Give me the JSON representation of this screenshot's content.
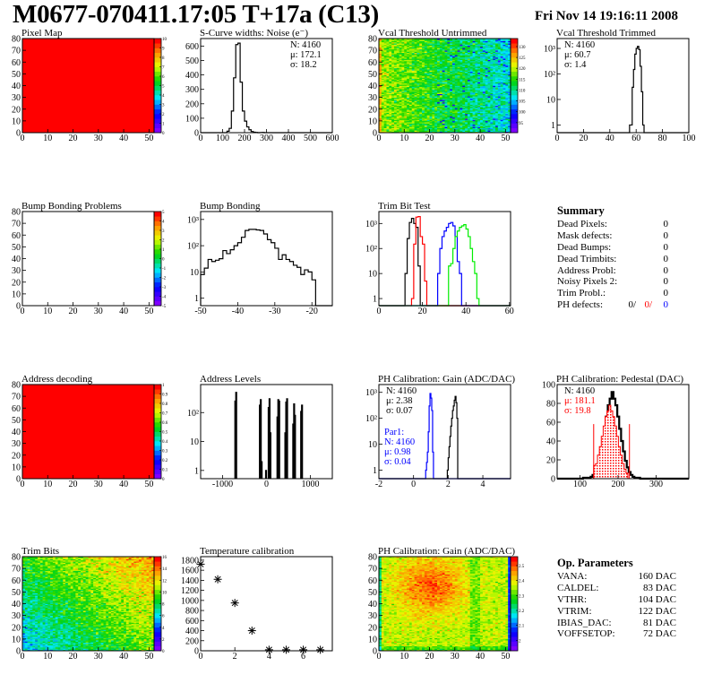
{
  "header": {
    "title": "M0677-070411.17:05 T+17a (C13)",
    "date": "Fri Nov 14 19:16:11 2008"
  },
  "summary": {
    "title": "Summary",
    "rows": [
      {
        "label": "Dead Pixels:",
        "value": "0"
      },
      {
        "label": "Mask defects:",
        "value": "0"
      },
      {
        "label": "Dead Bumps:",
        "value": "0"
      },
      {
        "label": "Dead Trimbits:",
        "value": "0"
      },
      {
        "label": "Address Probl:",
        "value": "0"
      },
      {
        "label": "Noisy Pixels 2:",
        "value": "0"
      },
      {
        "label": "Trim Probl.:",
        "value": "0"
      }
    ],
    "ph_defects": {
      "label": "PH defects:",
      "v1": "0/",
      "v2": "0/",
      "v3": "0",
      "colors": [
        "#000000",
        "#ff0000",
        "#0000ff"
      ]
    }
  },
  "op_parameters": {
    "title": "Op. Parameters",
    "rows": [
      {
        "label": "VANA:",
        "value": "160 DAC"
      },
      {
        "label": "CALDEL:",
        "value": "83 DAC"
      },
      {
        "label": "VTHR:",
        "value": "104 DAC"
      },
      {
        "label": "VTRIM:",
        "value": "122 DAC"
      },
      {
        "label": "IBIAS_DAC:",
        "value": "81 DAC"
      },
      {
        "label": "VOFFSETOP:",
        "value": "72 DAC"
      }
    ]
  },
  "chart_data": [
    {
      "type": "heatmap",
      "title": "Pixel Map",
      "xlim": [
        0,
        52
      ],
      "ylim": [
        0,
        80
      ],
      "zlim": [
        0,
        10
      ],
      "xticks": [
        0,
        10,
        20,
        30,
        40,
        50
      ],
      "yticks": [
        0,
        10,
        20,
        30,
        40,
        50,
        60,
        70,
        80
      ],
      "zticks": [
        0,
        1,
        2,
        3,
        4,
        5,
        6,
        7,
        8,
        9,
        10
      ],
      "uniform_value": 10
    },
    {
      "type": "hist",
      "title": "S-Curve widths: Noise (e⁻)",
      "log": false,
      "xlim": [
        0,
        600
      ],
      "ylim": [
        0,
        652
      ],
      "xticks": [
        0,
        100,
        200,
        300,
        400,
        500,
        600
      ],
      "yticks": [
        0,
        100,
        200,
        300,
        400,
        500,
        600
      ],
      "series": [
        {
          "color": "#000000",
          "x_low": 120,
          "bin_width": 10,
          "values": [
            10,
            30,
            150,
            380,
            610,
            620,
            350,
            150,
            80,
            40,
            20,
            8,
            3,
            2,
            0,
            1,
            2
          ]
        }
      ],
      "stats": [
        {
          "position": "top-right",
          "lines": [
            {
              "text": "N: 4160",
              "color": "#000000"
            },
            {
              "text": "μ: 172.1",
              "color": "#000000"
            },
            {
              "text": "σ: 18.2",
              "color": "#000000"
            }
          ]
        }
      ]
    },
    {
      "type": "heatmap",
      "title": "Vcal Threshold Untrimmed",
      "xlim": [
        0,
        52
      ],
      "ylim": [
        0,
        80
      ],
      "zlim": [
        90.4,
        133.7
      ],
      "xticks": [
        0,
        10,
        20,
        30,
        40,
        50
      ],
      "yticks": [
        0,
        10,
        20,
        30,
        40,
        50,
        60,
        70,
        80
      ],
      "zticks": [
        95,
        100,
        105,
        110,
        115,
        120,
        125,
        130
      ]
    },
    {
      "type": "hist",
      "title": "Vcal Threshold Trimmed",
      "log": true,
      "xlim": [
        0,
        100
      ],
      "ylim": [
        0.5,
        2440
      ],
      "xticks": [
        0,
        20,
        40,
        60,
        80,
        100
      ],
      "yticks": [
        1,
        10,
        100,
        1000
      ],
      "ytick_labels": [
        "1",
        "10",
        "10²",
        "10³"
      ],
      "series": [
        {
          "color": "#000000",
          "x_low": 55,
          "bin_width": 1,
          "values": [
            1,
            1,
            30,
            150,
            600,
            1000,
            1200,
            900,
            200,
            20,
            1
          ]
        }
      ],
      "stats": [
        {
          "position": "top-left",
          "lines": [
            {
              "text": "N: 4160",
              "color": "#000000"
            },
            {
              "text": "μ: 60.7",
              "color": "#000000"
            },
            {
              "text": "σ:  1.4",
              "color": "#000000"
            }
          ]
        }
      ]
    },
    {
      "type": "heatmap",
      "title": "Bump Bonding Problems",
      "xlim": [
        0,
        52
      ],
      "ylim": [
        0,
        80
      ],
      "zlim": [
        -5,
        5
      ],
      "xticks": [
        0,
        10,
        20,
        30,
        40,
        50
      ],
      "yticks": [
        0,
        10,
        20,
        30,
        40,
        50,
        60,
        70,
        80
      ],
      "zticks": [
        -5,
        -4,
        -3,
        -2,
        -1,
        0,
        1,
        2,
        3,
        4,
        5
      ],
      "uniform_value": null
    },
    {
      "type": "hist",
      "title": "Bump Bonding",
      "log": true,
      "xlim": [
        -50,
        -14.5
      ],
      "ylim": [
        0.52,
        2000
      ],
      "xticks": [
        -50,
        -40,
        -30,
        -20
      ],
      "yticks": [
        1,
        10,
        100,
        1000
      ],
      "ytick_labels": [
        "1",
        "10",
        "10²",
        "10³"
      ],
      "series": [
        {
          "color": "#000000",
          "x_low": -50,
          "bin_width": 1,
          "values": [
            8,
            14,
            30,
            25,
            28,
            32,
            65,
            50,
            70,
            100,
            130,
            210,
            380,
            420,
            420,
            400,
            380,
            280,
            170,
            130,
            80,
            30,
            45,
            30,
            25,
            18,
            15,
            8,
            12,
            10,
            5,
            0
          ]
        }
      ]
    },
    {
      "type": "hist",
      "title": "Trim Bit Test",
      "log": true,
      "xlim": [
        0,
        60.5
      ],
      "ylim": [
        0.52,
        3000
      ],
      "xticks": [
        0,
        20,
        40,
        60
      ],
      "yticks": [
        1,
        10,
        100,
        1000
      ],
      "ytick_labels": [
        "1",
        "10",
        "10²",
        "10³"
      ],
      "series": [
        {
          "color": "#000000",
          "x_low": 12,
          "bin_width": 1,
          "values": [
            10,
            250,
            1100,
            1600,
            1000,
            700,
            20,
            0
          ]
        },
        {
          "color": "#ff0000",
          "x_low": 15,
          "bin_width": 1,
          "values": [
            1,
            150,
            1800,
            1900,
            300,
            150,
            5,
            0
          ]
        },
        {
          "color": "#0000ff",
          "x_low": 27,
          "bin_width": 1,
          "values": [
            10,
            100,
            300,
            500,
            700,
            1000,
            1100,
            800,
            300,
            30,
            10,
            0
          ]
        },
        {
          "color": "#00ee00",
          "x_low": 32,
          "bin_width": 1,
          "values": [
            20,
            25,
            100,
            300,
            500,
            700,
            800,
            900,
            600,
            300,
            100,
            30,
            10,
            1,
            0
          ]
        }
      ]
    },
    {
      "type": "heatmap",
      "title": "Address decoding",
      "xlim": [
        0,
        52
      ],
      "ylim": [
        0,
        80
      ],
      "zlim": [
        0,
        1
      ],
      "xticks": [
        0,
        10,
        20,
        30,
        40,
        50
      ],
      "yticks": [
        0,
        10,
        20,
        30,
        40,
        50,
        60,
        70,
        80
      ],
      "zticks": [
        0,
        0.1,
        0.2,
        0.3,
        0.4,
        0.5,
        0.6,
        0.7,
        0.8,
        0.9,
        1
      ],
      "uniform_value": 1
    },
    {
      "type": "spikes",
      "title": "Address Levels",
      "log": true,
      "xlim": [
        -1500,
        1500
      ],
      "ylim": [
        0.52,
        930
      ],
      "xticks": [
        -1000,
        0,
        1000
      ],
      "yticks": [
        1,
        10,
        100
      ],
      "ytick_labels": [
        "1",
        "10",
        "10²"
      ],
      "series": [
        {
          "color": "#000000",
          "bin_width": 20,
          "x": [
            -720,
            -700,
            -160,
            -140,
            -120,
            -20,
            40,
            60,
            80,
            240,
            260,
            280,
            420,
            440,
            460,
            600,
            620,
            640,
            780,
            800
          ],
          "values": [
            250,
            500,
            180,
            280,
            2,
            1,
            150,
            300,
            20,
            70,
            280,
            250,
            20,
            230,
            300,
            40,
            200,
            80,
            110,
            180
          ]
        }
      ]
    },
    {
      "type": "hist",
      "title": "PH Calibration: Gain (ADC/DAC)",
      "log": true,
      "xlim": [
        -2,
        5.6
      ],
      "ylim": [
        0.47,
        2000
      ],
      "xticks": [
        -2,
        0,
        2,
        4
      ],
      "yticks": [
        1,
        10,
        100,
        1000
      ],
      "ytick_labels": [
        "1",
        "10",
        "10²",
        "10³"
      ],
      "series": [
        {
          "color": "#000000",
          "x_low": 1.95,
          "bin_width": 0.05,
          "values": [
            1,
            3,
            8,
            20,
            50,
            100,
            200,
            300,
            500,
            700,
            400,
            100,
            0
          ]
        },
        {
          "color": "#0000ff",
          "x_low": 0.7,
          "bin_width": 0.05,
          "values": [
            1,
            2,
            5,
            30,
            300,
            900,
            600,
            200,
            5,
            0
          ]
        }
      ],
      "stats": [
        {
          "position": "top-left",
          "lines": [
            {
              "text": "N: 4160",
              "color": "#000000"
            },
            {
              "text": "μ: 2.38",
              "color": "#000000"
            },
            {
              "text": "σ: 0.07",
              "color": "#000000"
            }
          ]
        },
        {
          "position": "lower-left",
          "lines": [
            {
              "text": "Par1:",
              "color": "#0000ff"
            },
            {
              "text": "N: 4160",
              "color": "#0000ff"
            },
            {
              "text": "μ: 0.98",
              "color": "#0000ff"
            },
            {
              "text": "σ: 0.04",
              "color": "#0000ff"
            }
          ]
        }
      ]
    },
    {
      "type": "hist",
      "title": "PH Calibration: Pedestal (DAC)",
      "log": false,
      "xlim": [
        40,
        386
      ],
      "ylim": [
        0,
        100
      ],
      "xticks": [
        100,
        200,
        300
      ],
      "yticks": [
        0,
        20,
        40,
        60,
        80,
        100
      ],
      "series": [
        {
          "color": "#000000",
          "x_low": 108,
          "bin_width": 5,
          "values": [
            1,
            1,
            1,
            1,
            2,
            4,
            7,
            12,
            19,
            29,
            40,
            53,
            66,
            78,
            85,
            92,
            85,
            78,
            66,
            53,
            40,
            29,
            19,
            12,
            7,
            4,
            2,
            1,
            1,
            1,
            0
          ]
        },
        {
          "color": "#ff0000",
          "x_low": 136,
          "bin_width": 5,
          "values": [
            14,
            16,
            25,
            34,
            45,
            56,
            66,
            72,
            78,
            72,
            66,
            56,
            45,
            34,
            25,
            16,
            10,
            6,
            0
          ],
          "fill": "dotted"
        }
      ],
      "markers": [
        {
          "x": 136,
          "y": 58,
          "color": "#ff0000"
        },
        {
          "x": 230,
          "y": 58,
          "color": "#ff0000"
        }
      ],
      "stats": [
        {
          "position": "top-left",
          "lines": [
            {
              "text": "N: 4160",
              "color": "#000000"
            },
            {
              "text": "μ: 181.1",
              "color": "#ff0000"
            },
            {
              "text": "σ: 19.8",
              "color": "#ff0000"
            }
          ]
        }
      ]
    },
    {
      "type": "heatmap",
      "title": "Trim Bits",
      "xlim": [
        0,
        52
      ],
      "ylim": [
        0,
        80
      ],
      "zlim": [
        0,
        16
      ],
      "xticks": [
        0,
        10,
        20,
        30,
        40,
        50
      ],
      "yticks": [
        0,
        10,
        20,
        30,
        40,
        50,
        60,
        70,
        80
      ],
      "zticks": [
        0,
        2,
        4,
        6,
        8,
        10,
        12,
        14,
        16
      ]
    },
    {
      "type": "scatter",
      "title": "Temperature calibration",
      "log": false,
      "xlim": [
        0,
        7.7
      ],
      "ylim": [
        0,
        1870
      ],
      "xticks": [
        0,
        2,
        4,
        6
      ],
      "yticks": [
        0,
        200,
        400,
        600,
        800,
        1000,
        1200,
        1400,
        1600,
        1800
      ],
      "points": {
        "x": [
          0,
          1,
          2,
          3,
          4,
          5,
          6,
          7
        ],
        "y": [
          1720,
          1420,
          950,
          400,
          20,
          20,
          20,
          20
        ]
      }
    },
    {
      "type": "heatmap",
      "title": "PH Calibration: Gain (ADC/DAC)",
      "xlim": [
        0,
        52
      ],
      "ylim": [
        0,
        80
      ],
      "zlim": [
        1.93,
        2.56
      ],
      "xticks": [
        0,
        10,
        20,
        30,
        40,
        50
      ],
      "yticks": [
        0,
        10,
        20,
        30,
        40,
        50,
        60,
        70,
        80
      ],
      "zticks": [
        2,
        2.1,
        2.2,
        2.3,
        2.4,
        2.5
      ]
    }
  ]
}
